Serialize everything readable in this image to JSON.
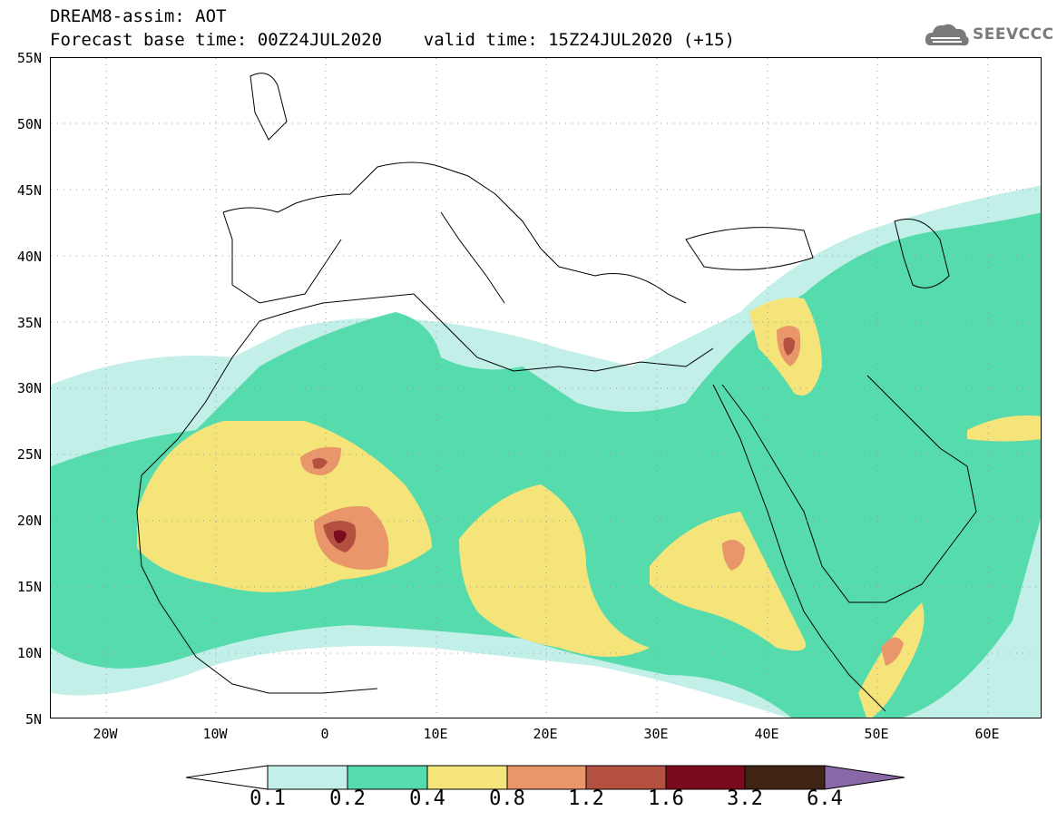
{
  "header": {
    "line1": "DREAM8-assim: AOT",
    "line2": "Forecast base time: 00Z24JUL2020    valid time: 15Z24JUL2020 (+15)"
  },
  "logo": {
    "text": "SEEVCCC",
    "icon": "cloud-icon"
  },
  "map": {
    "lat_labels": [
      "55N",
      "50N",
      "45N",
      "40N",
      "35N",
      "30N",
      "25N",
      "20N",
      "15N",
      "10N",
      "5N"
    ],
    "lon_labels": [
      "20W",
      "10W",
      "0",
      "10E",
      "20E",
      "30E",
      "40E",
      "50E",
      "60E"
    ],
    "lon_range": [
      -25,
      65
    ],
    "lat_range": [
      5,
      55
    ],
    "variable": "AOT"
  },
  "colorbar": {
    "labels": [
      "0.1",
      "0.2",
      "0.4",
      "0.8",
      "1.2",
      "1.6",
      "3.2",
      "6.4"
    ],
    "colors": {
      "lt_0.1": "#ffffff",
      "0.1-0.2": "#c2efe7",
      "0.2-0.4": "#56dbac",
      "0.4-0.8": "#f5e47a",
      "0.8-1.2": "#e8966a",
      "1.2-1.6": "#b4503f",
      "1.6-3.2": "#7a0b1e",
      "3.2-6.4": "#3f2414",
      "gt_6.4": "#8a68a8"
    }
  }
}
